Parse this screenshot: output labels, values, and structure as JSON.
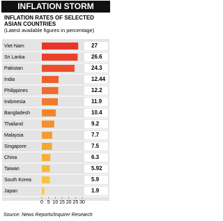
{
  "chart_data": {
    "type": "bar",
    "orientation": "horizontal",
    "title": "INFLATION STORM",
    "subtitle": "INFLATION RATES OF SELECTED ASIAN COUNTRIES",
    "note": "(Latest available figures in percentage)",
    "categories": [
      "Viet Nam",
      "Sri Lanka",
      "Pakistan",
      "India",
      "Philippines",
      "Indonesia",
      "Bangladesh",
      "Thailand",
      "Malaysia",
      "Singapore",
      "China",
      "Taiwan",
      "South Korea",
      "Japan"
    ],
    "values": [
      27,
      26.6,
      24.3,
      12.44,
      12.2,
      11.9,
      10.4,
      9.2,
      7.7,
      7.5,
      6.3,
      5.92,
      5.9,
      1.9
    ],
    "colors": [
      "#e8352b",
      "#ea3f2b",
      "#ec4d2c",
      "#ee5f2d",
      "#ef6c2d",
      "#f07a2e",
      "#f1862f",
      "#f29130",
      "#f39c31",
      "#f4a633",
      "#f5b035",
      "#f6ba38",
      "#f7c33b",
      "#f8cc3f"
    ],
    "xlim": [
      0,
      30
    ],
    "xticks": [
      0,
      5,
      10,
      15,
      20,
      25,
      30
    ],
    "source": "Source: News Reports/Inquirer Research"
  }
}
